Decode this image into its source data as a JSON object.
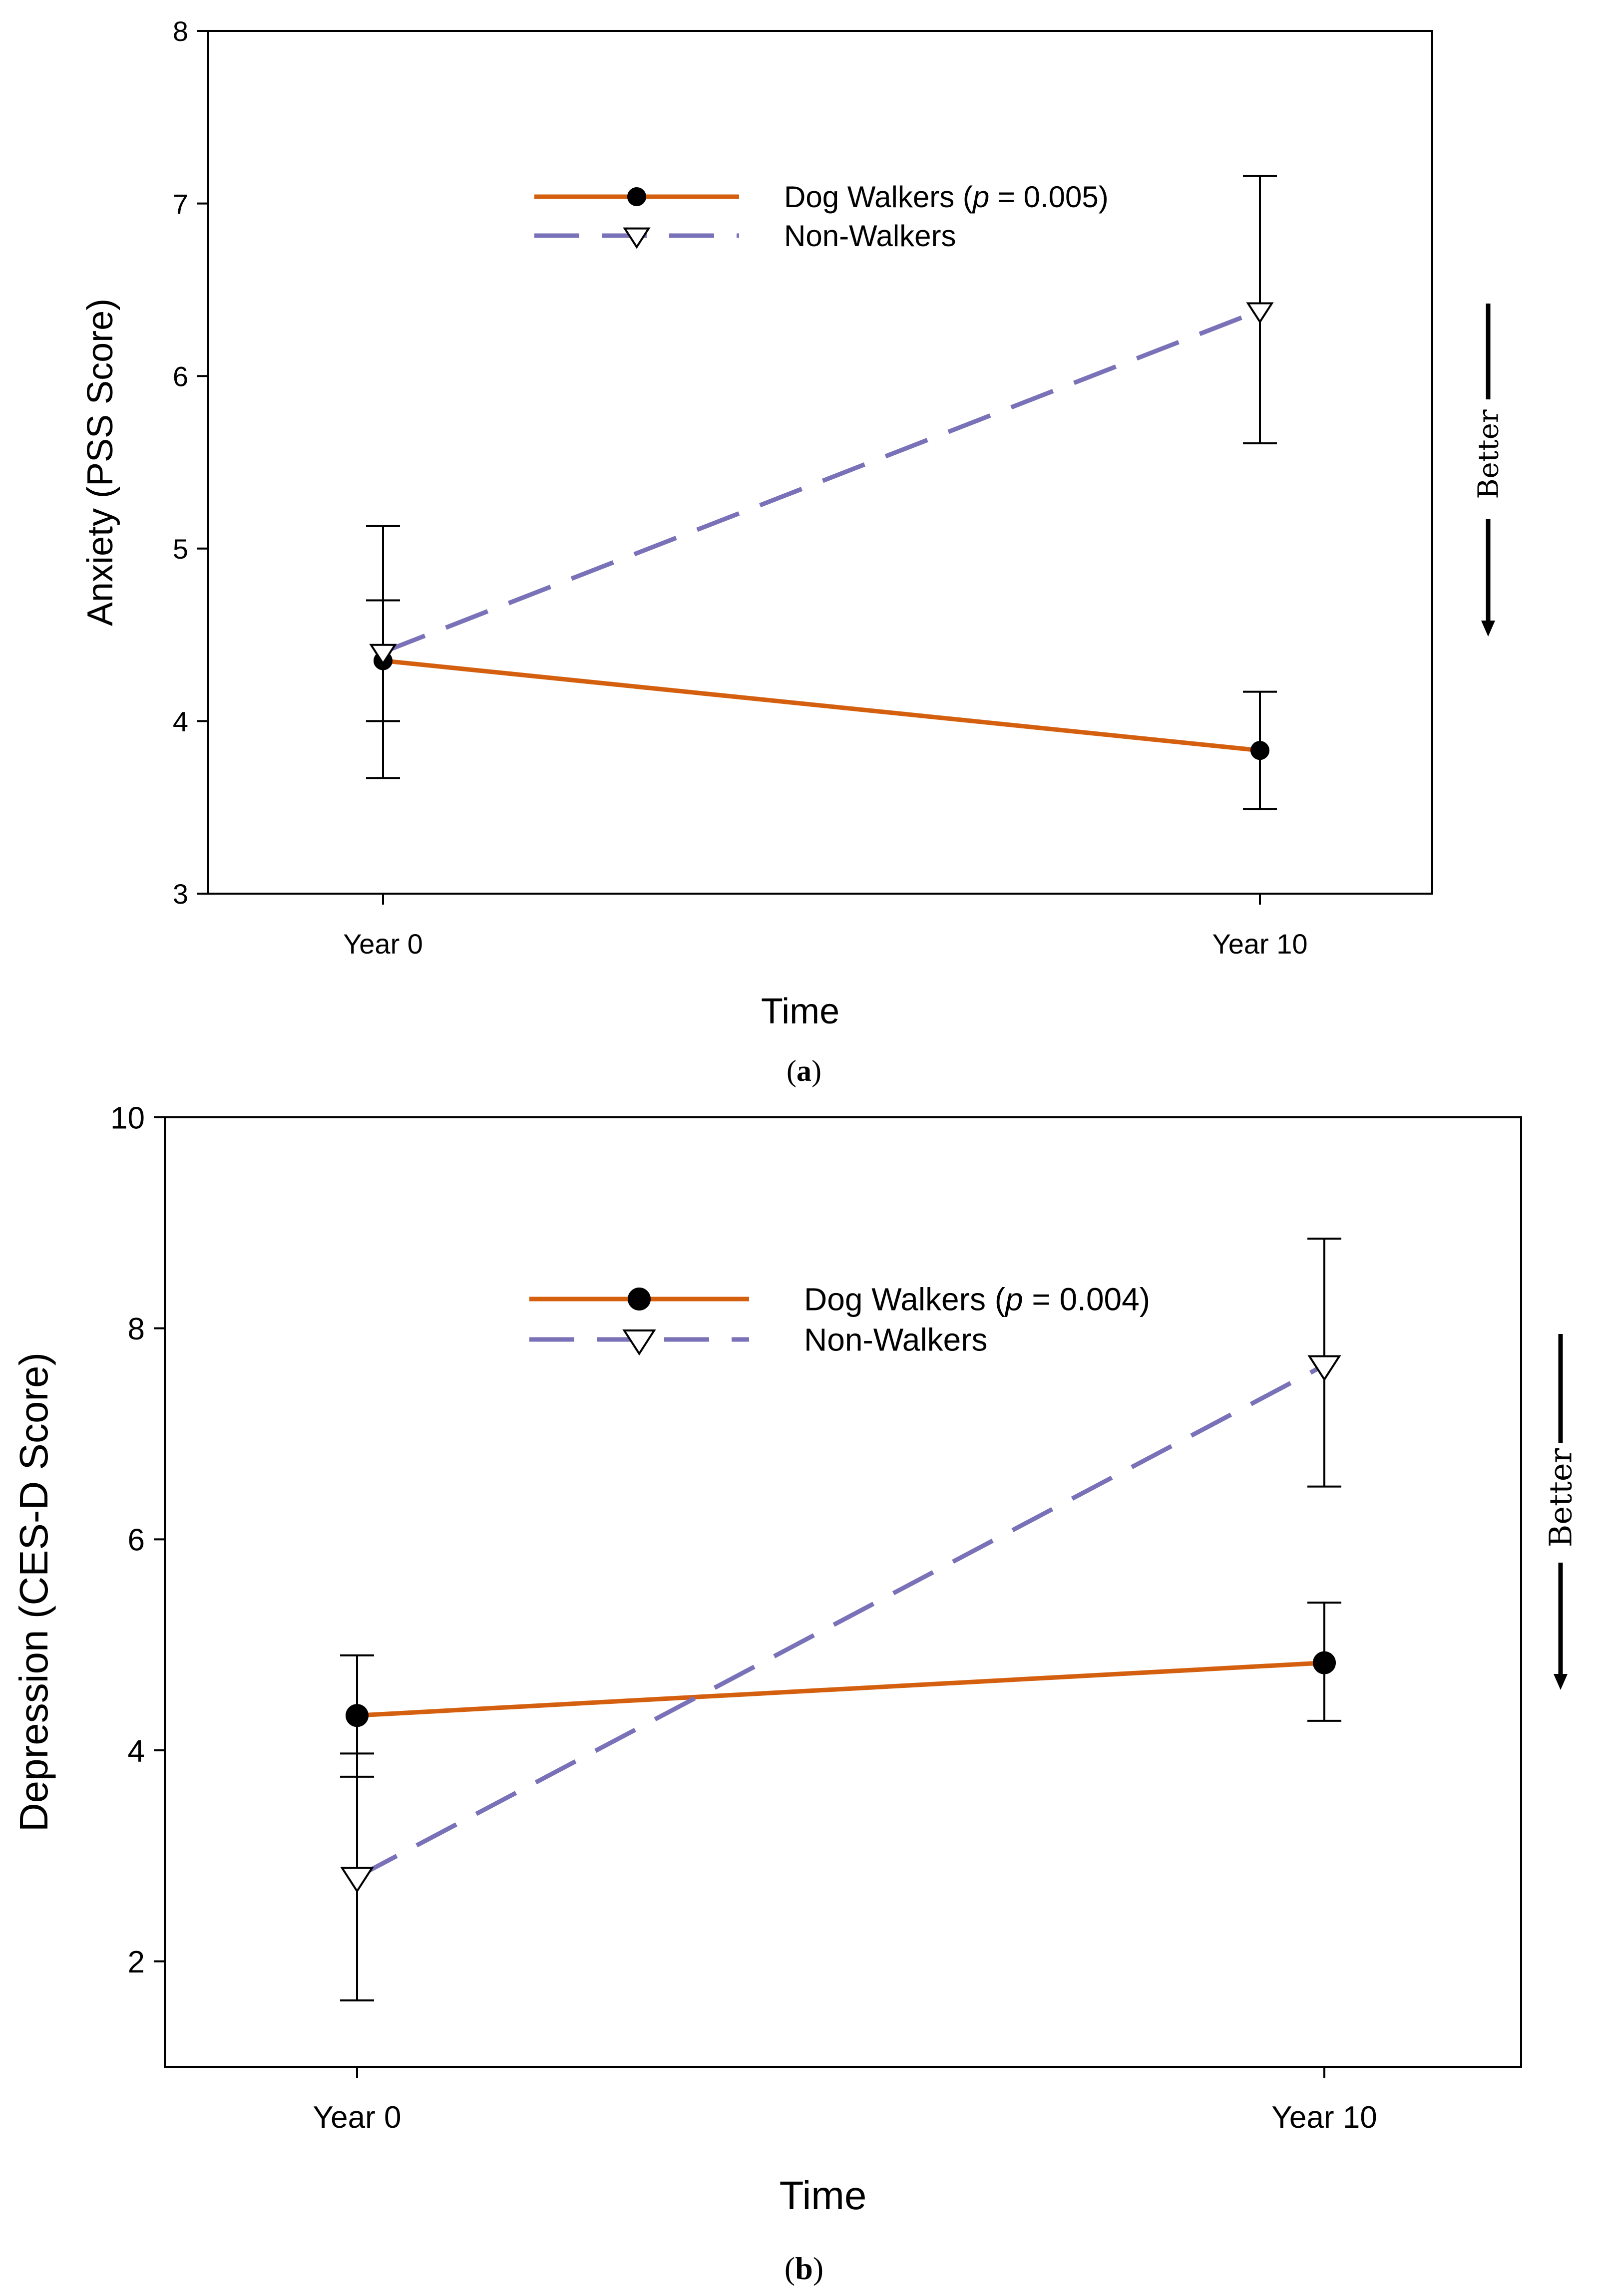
{
  "colors": {
    "dog_walkers": "#D35F0F",
    "non_walkers": "#7A72B8",
    "axis": "#000000",
    "background": "#FFFFFF"
  },
  "chart_data": [
    {
      "id": "a",
      "type": "line",
      "panel_label": "a",
      "xlabel": "Time",
      "ylabel": "Anxiety (PSS Score)",
      "categories": [
        "Year 0",
        "Year 10"
      ],
      "ylim": [
        3,
        8
      ],
      "yticks": [
        3,
        4,
        5,
        6,
        7,
        8
      ],
      "grid": false,
      "legend_position": "top-center",
      "series": [
        {
          "name": "Dog Walkers",
          "label_prefix": "Dog Walkers (",
          "p_symbol": "p",
          "label_suffix": " = 0.005)",
          "marker": "filled-circle",
          "line_style": "solid",
          "values": [
            4.35,
            3.83
          ],
          "err_low": [
            4.0,
            3.49
          ],
          "err_high": [
            4.7,
            4.17
          ]
        },
        {
          "name": "Non-Walkers",
          "label_prefix": "Non-Walkers",
          "p_symbol": "",
          "label_suffix": "",
          "marker": "open-triangle-down",
          "line_style": "dashed",
          "values": [
            4.4,
            6.38
          ],
          "err_low": [
            3.67,
            5.61
          ],
          "err_high": [
            5.13,
            7.16
          ]
        }
      ],
      "annotation": "Better"
    },
    {
      "id": "b",
      "type": "line",
      "panel_label": "b",
      "xlabel": "Time",
      "ylabel": "Depression (CES-D Score)",
      "categories": [
        "Year 0",
        "Year 10"
      ],
      "ylim": [
        1,
        10
      ],
      "yticks": [
        2,
        4,
        6,
        8,
        10
      ],
      "grid": false,
      "legend_position": "top-center",
      "series": [
        {
          "name": "Dog Walkers",
          "label_prefix": "Dog Walkers (",
          "p_symbol": "p",
          "label_suffix": " = 0.004)",
          "marker": "filled-circle",
          "line_style": "solid",
          "values": [
            4.33,
            4.83
          ],
          "err_low": [
            3.75,
            4.28
          ],
          "err_high": [
            4.9,
            5.4
          ]
        },
        {
          "name": "Non-Walkers",
          "label_prefix": "Non-Walkers",
          "p_symbol": "",
          "label_suffix": "",
          "marker": "open-triangle-down",
          "line_style": "dashed",
          "values": [
            2.8,
            7.65
          ],
          "err_low": [
            1.63,
            6.5
          ],
          "err_high": [
            3.97,
            8.85
          ]
        }
      ],
      "annotation": "Better"
    }
  ]
}
